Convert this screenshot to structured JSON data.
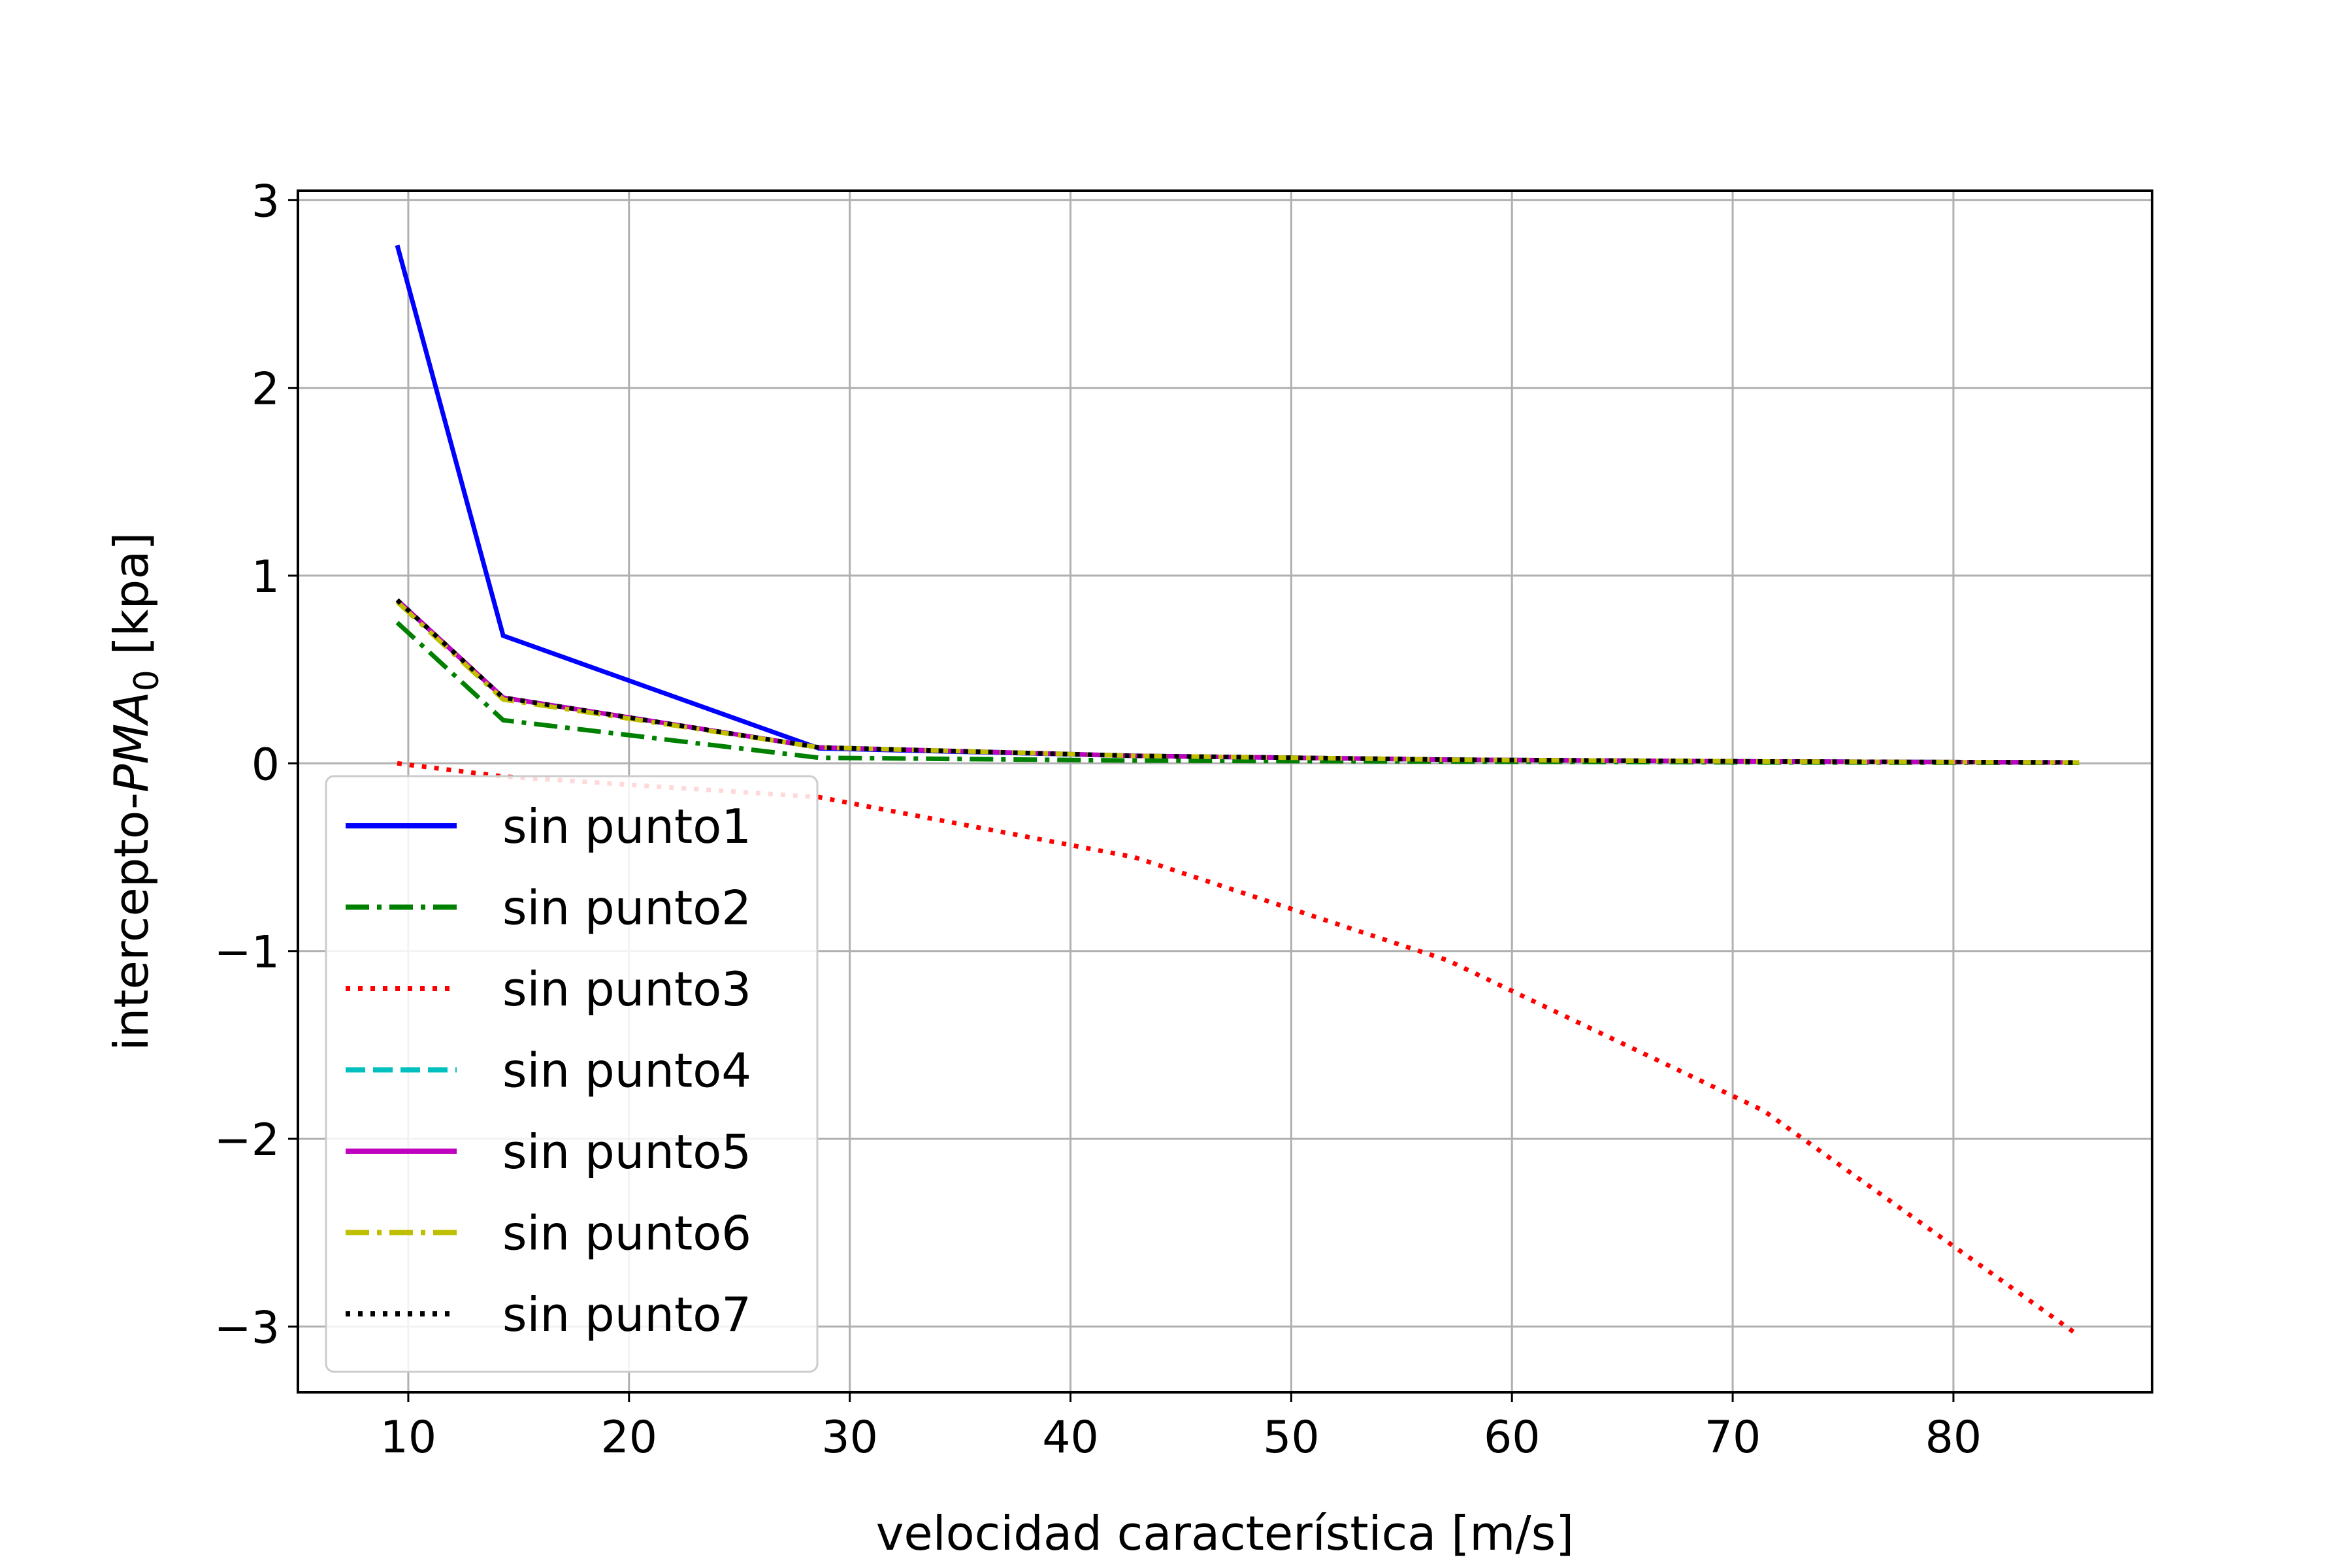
{
  "chart_data": {
    "type": "line",
    "title": "",
    "xlabel": "velocidad característica [m/s]",
    "ylabel": {
      "prefix": "intercepto-",
      "symbol": "PMA",
      "subscript": "0",
      "suffix": " [kpa]"
    },
    "xlim": [
      5,
      89
    ],
    "ylim": [
      -3.35,
      3.05
    ],
    "xticks": [
      10,
      20,
      30,
      40,
      50,
      60,
      70,
      80
    ],
    "yticks": [
      3,
      2,
      1,
      0,
      -1,
      -2,
      -3
    ],
    "ytick_labels": [
      "3",
      "2",
      "1",
      "0",
      "−1",
      "−2",
      "−3"
    ],
    "grid": true,
    "legend_position": "lower-left",
    "x": [
      9.5,
      14.3,
      28.6,
      42.9,
      57.1,
      71.4,
      85.7
    ],
    "series": [
      {
        "name": "sin punto1",
        "color": "#0000ff",
        "dash": "solid",
        "values": [
          2.76,
          0.68,
          0.08,
          0.04,
          0.02,
          0.01,
          0.005
        ]
      },
      {
        "name": "sin punto2",
        "color": "#008000",
        "dash": "dashdot",
        "values": [
          0.75,
          0.23,
          0.03,
          0.015,
          0.01,
          0.005,
          0.003
        ]
      },
      {
        "name": "sin punto3",
        "color": "#ff0000",
        "dash": "dotted",
        "values": [
          0.0,
          -0.07,
          -0.18,
          -0.5,
          -1.05,
          -1.85,
          -3.05
        ]
      },
      {
        "name": "sin punto4",
        "color": "#00bfbf",
        "dash": "dashed",
        "values": [
          0.87,
          0.35,
          0.085,
          0.04,
          0.02,
          0.01,
          0.005
        ]
      },
      {
        "name": "sin punto5",
        "color": "#bf00bf",
        "dash": "solid",
        "values": [
          0.87,
          0.35,
          0.085,
          0.04,
          0.02,
          0.01,
          0.005
        ]
      },
      {
        "name": "sin punto6",
        "color": "#bfbf00",
        "dash": "dashdot",
        "values": [
          0.86,
          0.34,
          0.085,
          0.04,
          0.02,
          0.01,
          0.005
        ]
      },
      {
        "name": "sin punto7",
        "color": "#000000",
        "dash": "dotted",
        "values": [
          0.87,
          0.35,
          0.085,
          0.04,
          0.02,
          0.01,
          0.005
        ]
      }
    ]
  }
}
